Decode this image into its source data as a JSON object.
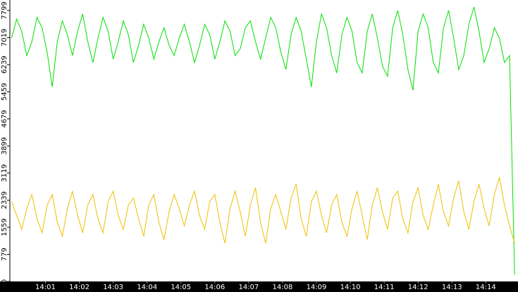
{
  "chart_data": {
    "type": "line",
    "x": [
      0,
      0.15,
      0.3,
      0.45,
      0.6,
      0.75,
      0.9,
      1.05,
      1.2,
      1.35,
      1.5,
      1.65,
      1.8,
      1.95,
      2.1,
      2.25,
      2.4,
      2.55,
      2.7,
      2.85,
      3,
      3.15,
      3.3,
      3.45,
      3.6,
      3.75,
      3.9,
      4.05,
      4.2,
      4.35,
      4.5,
      4.65,
      4.8,
      4.95,
      5.1,
      5.25,
      5.4,
      5.55,
      5.7,
      5.85,
      6,
      6.15,
      6.3,
      6.45,
      6.6,
      6.75,
      6.9,
      7.05,
      7.2,
      7.35,
      7.5,
      7.65,
      7.8,
      7.95,
      8.1,
      8.25,
      8.4,
      8.55,
      8.7,
      8.85,
      9,
      9.15,
      9.3,
      9.45,
      9.6,
      9.75,
      9.9,
      10.05,
      10.2,
      10.35,
      10.5,
      10.65,
      10.8,
      10.95,
      11.1,
      11.25,
      11.4,
      11.55,
      11.7,
      11.85,
      12,
      12.15,
      12.3,
      12.45,
      12.6,
      12.75,
      12.9,
      13.05,
      13.2,
      13.35,
      13.5,
      13.65,
      13.8,
      13.95,
      14.1,
      14.25,
      14.4,
      14.55,
      14.7,
      14.85
    ],
    "series": [
      {
        "color": "#00e000",
        "values": [
          7000,
          7550,
          7200,
          6500,
          6900,
          7600,
          7300,
          6600,
          5600,
          6900,
          7500,
          7100,
          6500,
          7200,
          7700,
          6900,
          6300,
          7000,
          7600,
          7200,
          6400,
          6900,
          7500,
          7100,
          6300,
          6800,
          7400,
          7000,
          6400,
          6900,
          7300,
          6800,
          6500,
          7000,
          7400,
          6900,
          6300,
          6800,
          7400,
          7100,
          6400,
          6900,
          7500,
          7200,
          6500,
          6700,
          7300,
          7500,
          6900,
          6400,
          7000,
          7600,
          7300,
          6600,
          6100,
          7100,
          7600,
          7200,
          6400,
          5600,
          6900,
          7700,
          7300,
          6500,
          6000,
          7100,
          7600,
          7200,
          6300,
          6000,
          7200,
          7700,
          7000,
          6200,
          5900,
          7300,
          7800,
          7100,
          6100,
          5500,
          7200,
          7700,
          7300,
          6300,
          6000,
          7300,
          7800,
          7000,
          6100,
          6500,
          7400,
          7900,
          7200,
          6300,
          6700,
          7300,
          7000,
          6300,
          6500,
          200
        ]
      },
      {
        "color": "#f0c000",
        "values": [
          2300,
          1900,
          1500,
          2100,
          2500,
          1800,
          1400,
          2200,
          2500,
          1700,
          1300,
          2100,
          2600,
          1900,
          1400,
          2200,
          2500,
          1800,
          1400,
          2300,
          2600,
          1900,
          1500,
          2200,
          2400,
          1800,
          1300,
          2200,
          2500,
          1700,
          1200,
          2000,
          2500,
          2100,
          1600,
          2200,
          2600,
          1900,
          1500,
          2300,
          2500,
          1700,
          1100,
          2100,
          2600,
          2000,
          1300,
          2200,
          2700,
          1700,
          1100,
          2100,
          2500,
          2000,
          1500,
          2400,
          2800,
          1800,
          1300,
          2300,
          2600,
          1900,
          1400,
          2200,
          2500,
          1700,
          1300,
          2100,
          2600,
          1900,
          1200,
          2200,
          2700,
          2000,
          1500,
          2400,
          2600,
          1800,
          1400,
          2300,
          2700,
          1900,
          1500,
          2200,
          2800,
          2000,
          1600,
          2400,
          2900,
          2000,
          1500,
          2300,
          2800,
          2100,
          1600,
          2500,
          3000,
          2200,
          1600,
          1100
        ]
      }
    ],
    "xlim": [
      -0.05,
      14.95
    ],
    "xticks": [
      {
        "value": 1,
        "label": "14:01"
      },
      {
        "value": 2,
        "label": "14:02"
      },
      {
        "value": 3,
        "label": "14:03"
      },
      {
        "value": 4,
        "label": "14:04"
      },
      {
        "value": 5,
        "label": "14:05"
      },
      {
        "value": 6,
        "label": "14:06"
      },
      {
        "value": 7,
        "label": "14:07"
      },
      {
        "value": 8,
        "label": "14:08"
      },
      {
        "value": 9,
        "label": "14:09"
      },
      {
        "value": 10,
        "label": "14:10"
      },
      {
        "value": 11,
        "label": "14:11"
      },
      {
        "value": 12,
        "label": "14:12"
      },
      {
        "value": 13,
        "label": "14:13"
      },
      {
        "value": 14,
        "label": "14:14"
      }
    ],
    "ylim": [
      0,
      8100
    ],
    "yticks": [
      0,
      779,
      1559,
      2339,
      3119,
      3899,
      4679,
      5459,
      6239,
      7019,
      7799
    ]
  }
}
